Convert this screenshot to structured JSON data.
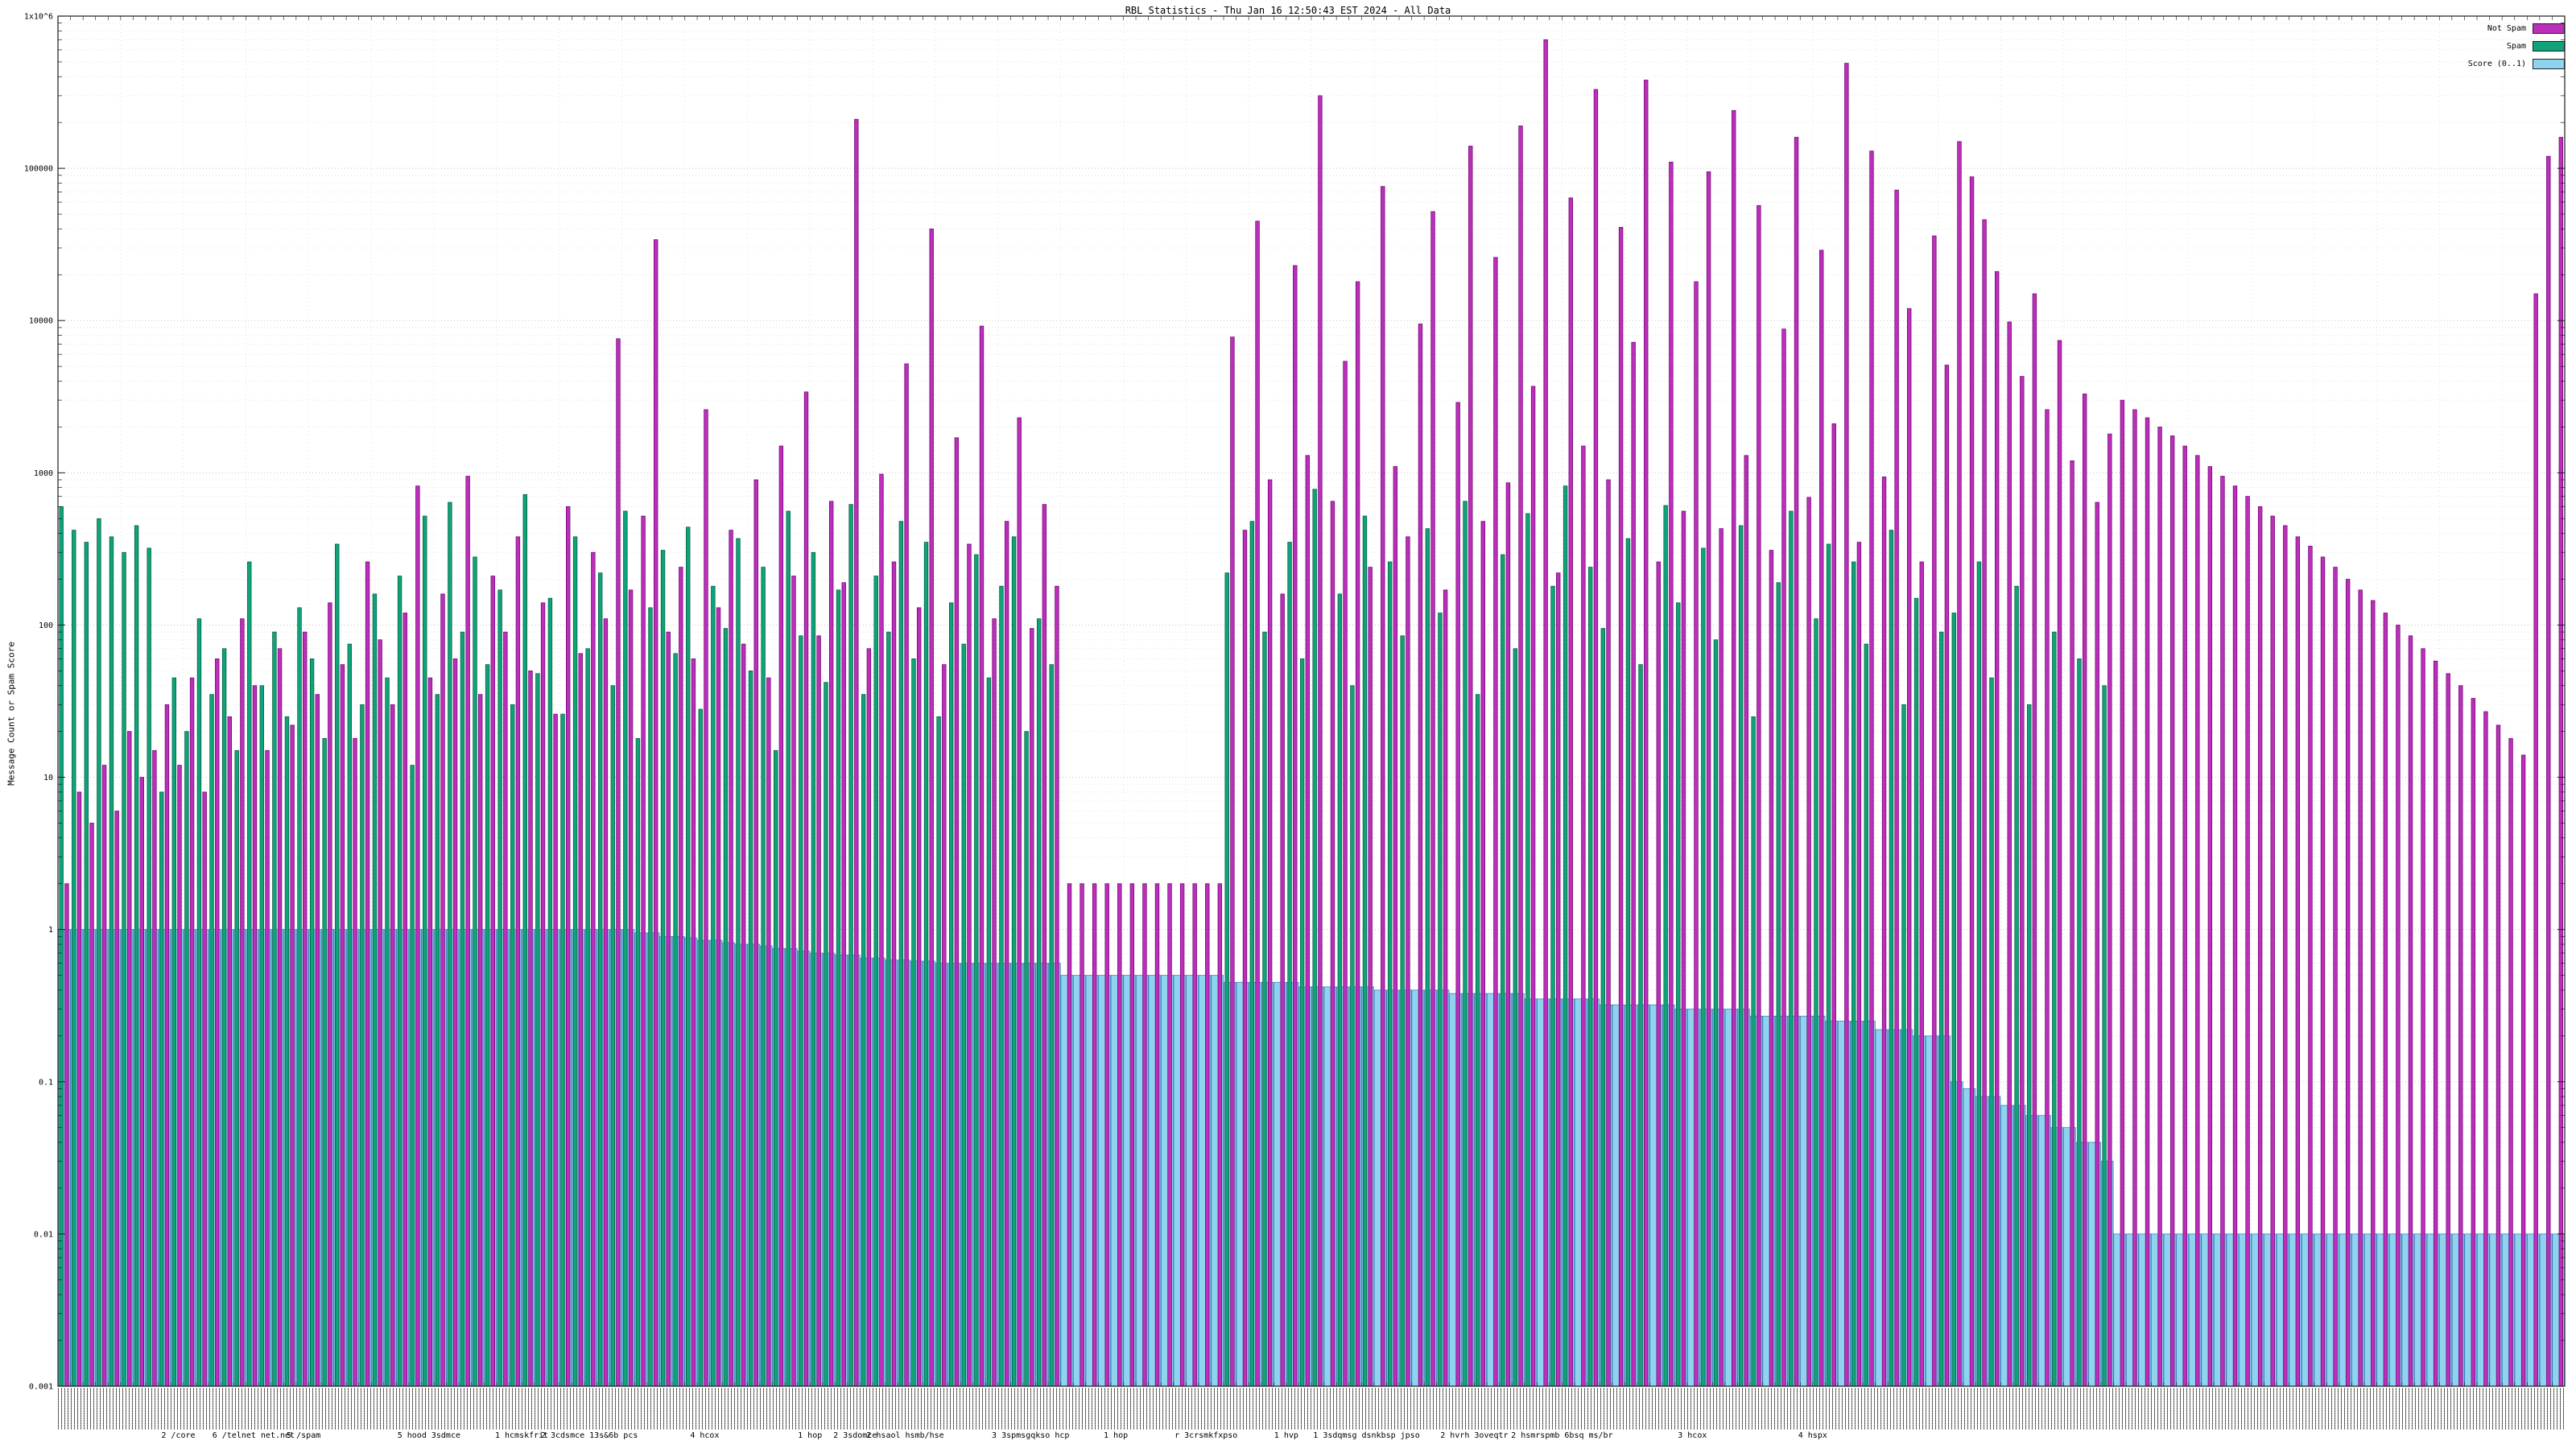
{
  "title": "RBL Statistics - Thu Jan 16 12:50:43 EST 2024 - All Data",
  "ylabel": "Message Count or Spam Score",
  "x_axis": {
    "labels_illegible": true,
    "note": "dense rotated per-host labels, unreadable at this scale"
  },
  "y_ticks": [
    {
      "label": "1x10^6",
      "v": 1000000
    },
    {
      "label": "100000",
      "v": 100000
    },
    {
      "label": "10000",
      "v": 10000
    },
    {
      "label": "1000",
      "v": 1000
    },
    {
      "label": "100",
      "v": 100
    },
    {
      "label": "10",
      "v": 10
    },
    {
      "label": "1",
      "v": 1
    },
    {
      "label": "0.1",
      "v": 0.1
    },
    {
      "label": "0.01",
      "v": 0.01
    },
    {
      "label": "0.001",
      "v": 0.001
    }
  ],
  "captions": [
    {
      "x": 0.048,
      "text": "2 /core"
    },
    {
      "x": 0.078,
      "text": "6 /telnet net.net"
    },
    {
      "x": 0.098,
      "text": "5 /spam"
    },
    {
      "x": 0.148,
      "text": "5 hood 3sdmce"
    },
    {
      "x": 0.185,
      "text": "1 hcmskfrit"
    },
    {
      "x": 0.212,
      "text": "2 3cdsmce 13s&6b pcs"
    },
    {
      "x": 0.258,
      "text": "4 hcox"
    },
    {
      "x": 0.3,
      "text": "1 hop"
    },
    {
      "x": 0.318,
      "text": "2 3sdomce"
    },
    {
      "x": 0.338,
      "text": "2 hsaol hsmb/hse"
    },
    {
      "x": 0.388,
      "text": "3 3spmsgqkso hcp"
    },
    {
      "x": 0.422,
      "text": "1 hop"
    },
    {
      "x": 0.458,
      "text": "r 3crsmkfxpso"
    },
    {
      "x": 0.49,
      "text": "1 hvp"
    },
    {
      "x": 0.522,
      "text": "1 3sdqmsg dsnkbsp jpso"
    },
    {
      "x": 0.565,
      "text": "2 hvrh 3oveqtr"
    },
    {
      "x": 0.6,
      "text": "2 hsmrspmb 6bsq ms/br"
    },
    {
      "x": 0.652,
      "text": "3 hcox"
    },
    {
      "x": 0.7,
      "text": "4 hspx"
    }
  ],
  "chart_data": {
    "type": "bar",
    "log_y": true,
    "ylim": [
      0.001,
      1000000
    ],
    "n": 200,
    "grid": true,
    "legend_position": "top-right",
    "series": [
      {
        "name": "Not Spam",
        "color": "#bb2fbb",
        "edge": "#6d006d",
        "values": [
          2,
          8,
          5,
          12,
          6,
          20,
          10,
          15,
          30,
          12,
          45,
          8,
          60,
          25,
          110,
          40,
          15,
          70,
          22,
          90,
          35,
          140,
          55,
          18,
          260,
          80,
          30,
          120,
          820,
          45,
          160,
          60,
          950,
          35,
          210,
          90,
          380,
          50,
          140,
          26,
          600,
          65,
          300,
          110,
          7600,
          170,
          520,
          34000,
          90,
          240,
          60,
          2600,
          130,
          420,
          75,
          900,
          45,
          1500,
          210,
          3400,
          85,
          650,
          190,
          210000,
          70,
          980,
          260,
          5200,
          130,
          40000,
          55,
          1700,
          340,
          9200,
          110,
          480,
          2300,
          95,
          620,
          180,
          2,
          2,
          2,
          2,
          2,
          2,
          2,
          2,
          2,
          2,
          2,
          2,
          2,
          7800,
          420,
          45000,
          900,
          160,
          23000,
          1300,
          300000,
          650,
          5400,
          18000,
          240,
          76000,
          1100,
          380,
          9500,
          52000,
          170,
          2900,
          140000,
          480,
          26000,
          860,
          190000,
          3700,
          700000,
          220,
          64000,
          1500,
          330000,
          900,
          41000,
          7200,
          380000,
          260,
          110000,
          560,
          18000,
          95000,
          430,
          240000,
          1300,
          57000,
          310,
          8800,
          160000,
          690,
          29000,
          2100,
          490000,
          350,
          130000,
          940,
          72000,
          12000,
          260,
          36000,
          5100,
          150000,
          88000,
          46000,
          21000,
          9800,
          4300,
          15000,
          2600,
          7400,
          1200,
          3300,
          640,
          1800,
          3000,
          2600,
          2300,
          2000,
          1750,
          1500,
          1300,
          1100,
          950,
          820,
          700,
          600,
          520,
          450,
          380,
          330,
          280,
          240,
          200,
          170,
          145,
          120,
          100,
          85,
          70,
          58,
          48,
          40,
          33,
          27,
          22,
          18,
          14,
          15000,
          120000,
          160000
        ]
      },
      {
        "name": "Spam",
        "color": "#0fa37a",
        "edge": "#00563c",
        "values": [
          600,
          420,
          350,
          500,
          380,
          300,
          450,
          320,
          8,
          45,
          20,
          110,
          35,
          70,
          15,
          260,
          40,
          90,
          25,
          130,
          60,
          18,
          340,
          75,
          30,
          160,
          45,
          210,
          12,
          520,
          35,
          640,
          90,
          280,
          55,
          170,
          30,
          720,
          48,
          150,
          26,
          380,
          70,
          220,
          40,
          560,
          18,
          130,
          310,
          65,
          440,
          28,
          180,
          95,
          370,
          50,
          240,
          15,
          560,
          85,
          300,
          42,
          170,
          620,
          35,
          210,
          90,
          480,
          60,
          350,
          25,
          140,
          75,
          290,
          45,
          180,
          380,
          20,
          110,
          55,
          0,
          0,
          0,
          0,
          0,
          0,
          0,
          0,
          0,
          0,
          0,
          0,
          0,
          220,
          0,
          480,
          90,
          0,
          350,
          60,
          780,
          0,
          160,
          40,
          520,
          0,
          260,
          85,
          0,
          430,
          120,
          0,
          650,
          35,
          0,
          290,
          70,
          540,
          0,
          180,
          820,
          0,
          240,
          95,
          0,
          370,
          55,
          0,
          610,
          140,
          0,
          320,
          80,
          0,
          450,
          25,
          0,
          190,
          560,
          0,
          110,
          340,
          0,
          260,
          75,
          0,
          420,
          30,
          150,
          0,
          90,
          120,
          0,
          260,
          45,
          0,
          180,
          30,
          0,
          90,
          0,
          60,
          0,
          40,
          0,
          0,
          0,
          0,
          0,
          0,
          0,
          0,
          0,
          0,
          0,
          0,
          0,
          0,
          0,
          0,
          0,
          0,
          0,
          0,
          0,
          0,
          0,
          0,
          0,
          0,
          0,
          0,
          0,
          0,
          0,
          0,
          0,
          0,
          0,
          0
        ]
      },
      {
        "name": "Score (0..1)",
        "color": "#8ed3ef",
        "edge": "#3a78b5",
        "values": [
          1,
          1,
          1,
          1,
          1,
          1,
          1,
          1,
          1,
          1,
          1,
          1,
          1,
          1,
          1,
          1,
          1,
          1,
          1,
          1,
          1,
          1,
          1,
          1,
          1,
          1,
          1,
          1,
          1,
          1,
          1,
          1,
          1,
          1,
          1,
          1,
          1,
          1,
          1,
          1,
          1,
          1,
          1,
          1,
          1,
          1,
          0.95,
          0.95,
          0.9,
          0.9,
          0.88,
          0.85,
          0.85,
          0.82,
          0.8,
          0.8,
          0.78,
          0.75,
          0.75,
          0.72,
          0.7,
          0.7,
          0.68,
          0.68,
          0.65,
          0.65,
          0.63,
          0.63,
          0.62,
          0.62,
          0.6,
          0.6,
          0.6,
          0.6,
          0.6,
          0.6,
          0.6,
          0.6,
          0.6,
          0.6,
          0.5,
          0.5,
          0.5,
          0.5,
          0.5,
          0.5,
          0.5,
          0.5,
          0.5,
          0.5,
          0.5,
          0.5,
          0.5,
          0.45,
          0.45,
          0.45,
          0.45,
          0.45,
          0.45,
          0.42,
          0.42,
          0.42,
          0.42,
          0.42,
          0.42,
          0.4,
          0.4,
          0.4,
          0.4,
          0.4,
          0.4,
          0.38,
          0.38,
          0.38,
          0.38,
          0.38,
          0.38,
          0.35,
          0.35,
          0.35,
          0.35,
          0.35,
          0.35,
          0.32,
          0.32,
          0.32,
          0.32,
          0.32,
          0.32,
          0.3,
          0.3,
          0.3,
          0.3,
          0.3,
          0.3,
          0.27,
          0.27,
          0.27,
          0.27,
          0.27,
          0.27,
          0.25,
          0.25,
          0.25,
          0.25,
          0.22,
          0.22,
          0.22,
          0.2,
          0.2,
          0.2,
          0.1,
          0.09,
          0.08,
          0.08,
          0.07,
          0.07,
          0.06,
          0.06,
          0.05,
          0.05,
          0.04,
          0.04,
          0.03,
          0.01,
          0.01,
          0.01,
          0.01,
          0.01,
          0.01,
          0.01,
          0.01,
          0.01,
          0.01,
          0.01,
          0.01,
          0.01,
          0.01,
          0.01,
          0.01,
          0.01,
          0.01,
          0.01,
          0.01,
          0.01,
          0.01,
          0.01,
          0.01,
          0.01,
          0.01,
          0.01,
          0.01,
          0.01,
          0.01,
          0.01,
          0.01,
          0.01,
          0.01,
          0.01,
          0.01
        ]
      }
    ]
  }
}
